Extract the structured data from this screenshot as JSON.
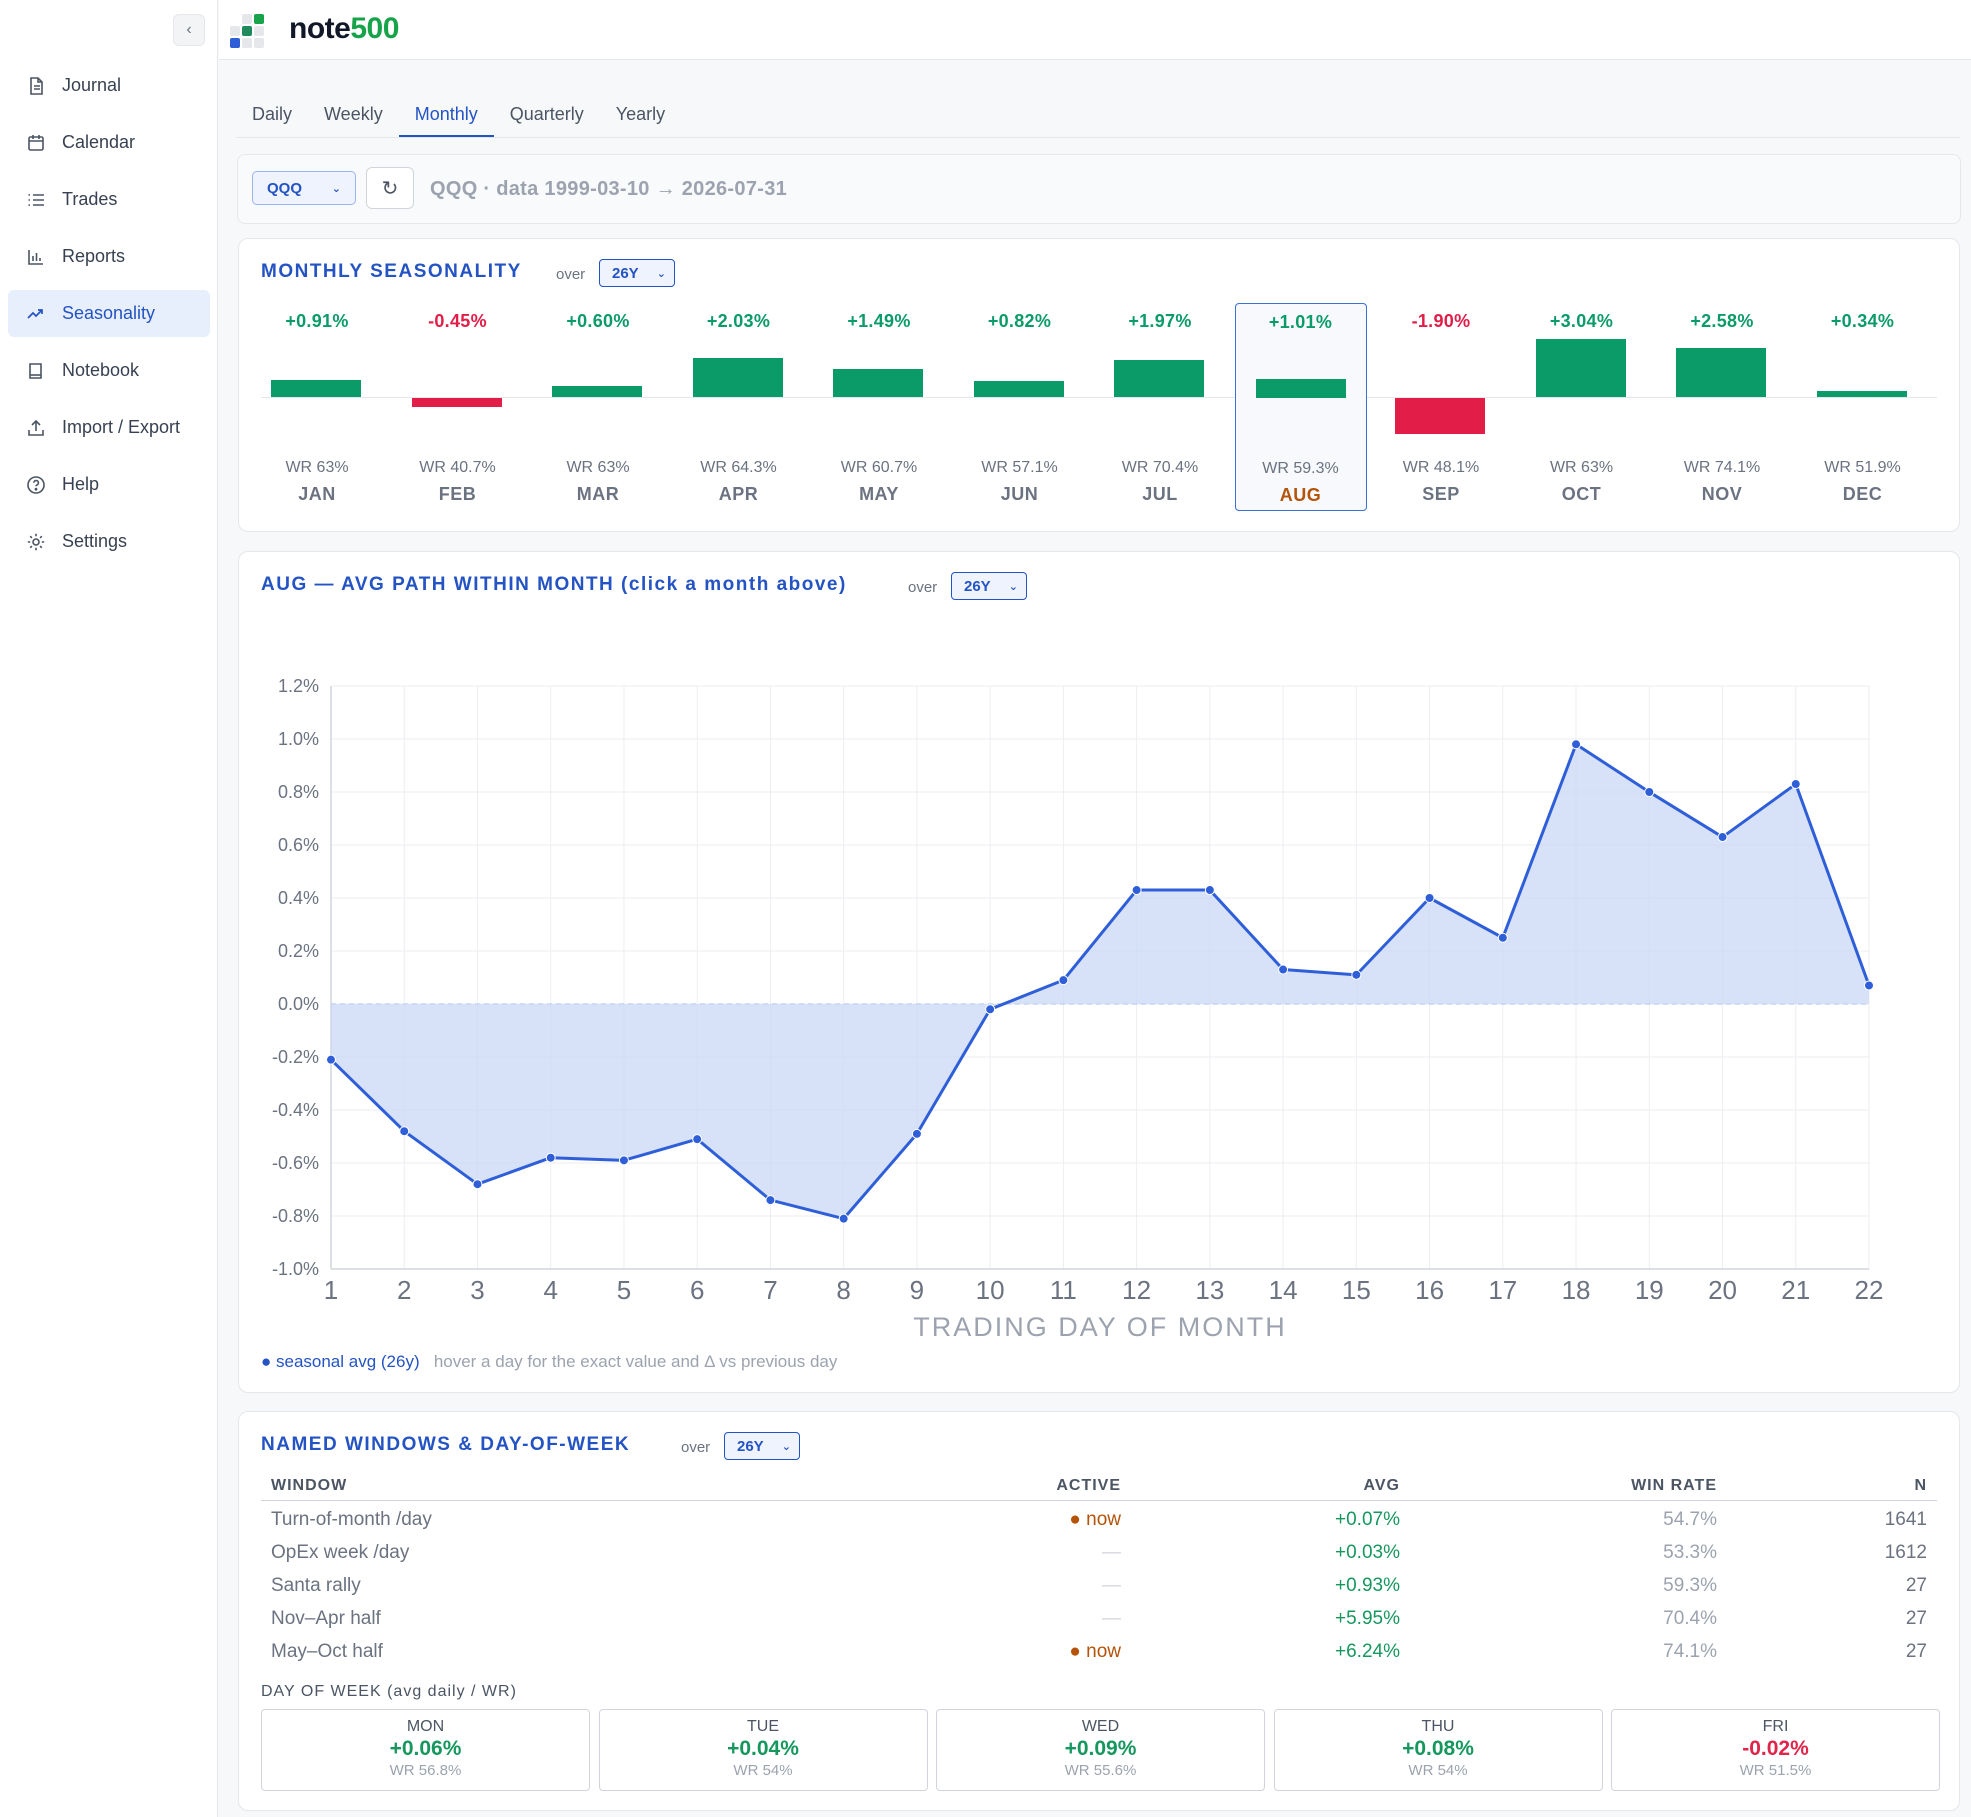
{
  "app": {
    "brand_prefix": "note",
    "brand_suffix": "500"
  },
  "sidebar": {
    "collapse_icon": "‹",
    "items": [
      {
        "label": "Journal",
        "icon": "journal-icon"
      },
      {
        "label": "Calendar",
        "icon": "calendar-icon"
      },
      {
        "label": "Trades",
        "icon": "list-icon"
      },
      {
        "label": "Reports",
        "icon": "bar-chart-icon"
      },
      {
        "label": "Seasonality",
        "icon": "trend-icon",
        "active": true
      },
      {
        "label": "Notebook",
        "icon": "notebook-icon"
      },
      {
        "label": "Import / Export",
        "icon": "upload-icon"
      },
      {
        "label": "Help",
        "icon": "help-icon"
      },
      {
        "label": "Settings",
        "icon": "gear-icon"
      }
    ]
  },
  "tabs": [
    {
      "label": "Daily"
    },
    {
      "label": "Weekly"
    },
    {
      "label": "Monthly",
      "active": true
    },
    {
      "label": "Quarterly"
    },
    {
      "label": "Yearly"
    }
  ],
  "filter": {
    "symbol": "QQQ",
    "refresh_icon": "↻",
    "data_range": "QQQ · data 1999-03-10 → 2026-07-31"
  },
  "seasonality": {
    "title": "MONTHLY SEASONALITY",
    "over_label": "over",
    "period": "26Y",
    "months": [
      {
        "name": "JAN",
        "avg": "+0.91%",
        "value": 0.91,
        "wr": "WR 63%"
      },
      {
        "name": "FEB",
        "avg": "-0.45%",
        "value": -0.45,
        "wr": "WR 40.7%"
      },
      {
        "name": "MAR",
        "avg": "+0.60%",
        "value": 0.6,
        "wr": "WR 63%"
      },
      {
        "name": "APR",
        "avg": "+2.03%",
        "value": 2.03,
        "wr": "WR 64.3%"
      },
      {
        "name": "MAY",
        "avg": "+1.49%",
        "value": 1.49,
        "wr": "WR 60.7%"
      },
      {
        "name": "JUN",
        "avg": "+0.82%",
        "value": 0.82,
        "wr": "WR 57.1%"
      },
      {
        "name": "JUL",
        "avg": "+1.97%",
        "value": 1.97,
        "wr": "WR 70.4%"
      },
      {
        "name": "AUG",
        "avg": "+1.01%",
        "value": 1.01,
        "wr": "WR 59.3%",
        "selected": true
      },
      {
        "name": "SEP",
        "avg": "-1.90%",
        "value": -1.9,
        "wr": "WR 48.1%"
      },
      {
        "name": "OCT",
        "avg": "+3.04%",
        "value": 3.04,
        "wr": "WR 63%"
      },
      {
        "name": "NOV",
        "avg": "+2.58%",
        "value": 2.58,
        "wr": "WR 74.1%"
      },
      {
        "name": "DEC",
        "avg": "+0.34%",
        "value": 0.34,
        "wr": "WR 51.9%"
      }
    ],
    "colors": {
      "positive": "#0b9b68",
      "negative": "#e11d48",
      "selected_month": "#b45309"
    }
  },
  "path": {
    "title": "AUG — AVG PATH WITHIN MONTH (click a month above)",
    "over_label": "over",
    "period": "26Y",
    "legend_label": "● seasonal avg (26y)",
    "hint": "hover a day for the exact value and Δ vs previous day"
  },
  "chart_data": {
    "type": "area",
    "xlabel": "TRADING DAY OF MONTH",
    "x": [
      1,
      2,
      3,
      4,
      5,
      6,
      7,
      8,
      9,
      10,
      11,
      12,
      13,
      14,
      15,
      16,
      17,
      18,
      19,
      20,
      21,
      22
    ],
    "series": [
      {
        "name": "seasonal avg (26y)",
        "values": [
          -0.21,
          -0.48,
          -0.68,
          -0.58,
          -0.59,
          -0.51,
          -0.74,
          -0.81,
          -0.49,
          -0.02,
          0.09,
          0.43,
          0.43,
          0.13,
          0.11,
          0.4,
          0.25,
          0.98,
          0.8,
          0.63,
          0.83,
          0.07
        ]
      }
    ],
    "xlim": [
      1,
      22
    ],
    "ylim": [
      -1.0,
      1.2
    ],
    "yticks": [
      "1.2%",
      "1.0%",
      "0.8%",
      "0.6%",
      "0.4%",
      "0.2%",
      "0.0%",
      "-0.2%",
      "-0.4%",
      "-0.6%",
      "-0.8%",
      "-1.0%"
    ],
    "grid": true,
    "colors": {
      "line": "#2f5fd8",
      "fill": "#c9d8f6"
    }
  },
  "windows": {
    "title": "NAMED WINDOWS & DAY-OF-WEEK",
    "over_label": "over",
    "period": "26Y",
    "headers": {
      "window": "WINDOW",
      "active": "ACTIVE",
      "avg": "AVG",
      "win_rate": "WIN RATE",
      "n": "N"
    },
    "rows": [
      {
        "window": "Turn-of-month /day",
        "active": "● now",
        "avg": "+0.07%",
        "win_rate": "54.7%",
        "n": "1641"
      },
      {
        "window": "OpEx week /day",
        "active": "—",
        "avg": "+0.03%",
        "win_rate": "53.3%",
        "n": "1612"
      },
      {
        "window": "Santa rally",
        "active": "—",
        "avg": "+0.93%",
        "win_rate": "59.3%",
        "n": "27"
      },
      {
        "window": "Nov–Apr half",
        "active": "—",
        "avg": "+5.95%",
        "win_rate": "70.4%",
        "n": "27"
      },
      {
        "window": "May–Oct half",
        "active": "● now",
        "avg": "+6.24%",
        "win_rate": "74.1%",
        "n": "27"
      }
    ],
    "dow_title": "DAY OF WEEK (avg daily / WR)",
    "dow": [
      {
        "day": "MON",
        "avg": "+0.06%",
        "wr": "WR 56.8%"
      },
      {
        "day": "TUE",
        "avg": "+0.04%",
        "wr": "WR 54%"
      },
      {
        "day": "WED",
        "avg": "+0.09%",
        "wr": "WR 55.6%"
      },
      {
        "day": "THU",
        "avg": "+0.08%",
        "wr": "WR 54%"
      },
      {
        "day": "FRI",
        "avg": "-0.02%",
        "wr": "WR 51.5%"
      }
    ]
  }
}
